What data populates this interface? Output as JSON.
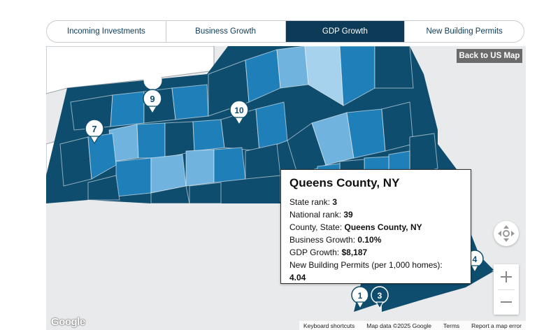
{
  "tabs": [
    {
      "label": "Incoming Investments",
      "active": false
    },
    {
      "label": "Business Growth",
      "active": false
    },
    {
      "label": "GDP Growth",
      "active": true
    },
    {
      "label": "New Building Permits",
      "active": false
    }
  ],
  "map": {
    "back_label": "Back to US Map",
    "markers": [
      "9",
      "7",
      "10",
      "4",
      "1",
      "3"
    ],
    "attribution": {
      "shortcuts": "Keyboard shortcuts",
      "map_data": "Map data ©2025 Google",
      "terms": "Terms",
      "report": "Report a map error"
    },
    "logo_text": "Google",
    "colors": {
      "dark": "#0e4d6e",
      "mid": "#1f7fb8",
      "light": "#6fb3de",
      "lightest": "#a6d2ee",
      "active_tab": "#0c3a57"
    }
  },
  "tooltip": {
    "title": "Queens County, NY",
    "rows": [
      {
        "label": "State rank: ",
        "value": "3"
      },
      {
        "label": "National rank: ",
        "value": "39"
      },
      {
        "label": "County, State: ",
        "value": "Queens County, NY"
      },
      {
        "label": "Business Growth: ",
        "value": "0.10%"
      },
      {
        "label": "GDP Growth: ",
        "value": "$8,187"
      },
      {
        "label": "New Building Permits (per 1,000 homes):",
        "value": "4.04"
      }
    ]
  }
}
